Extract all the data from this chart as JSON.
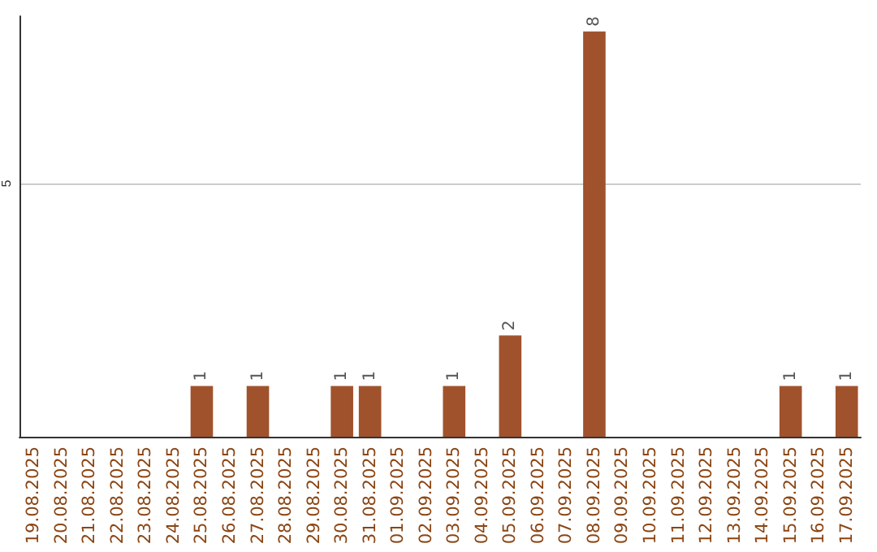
{
  "chart_data": {
    "type": "bar",
    "categories": [
      "19.08.2025",
      "20.08.2025",
      "21.08.2025",
      "22.08.2025",
      "23.08.2025",
      "24.08.2025",
      "25.08.2025",
      "26.08.2025",
      "27.08.2025",
      "28.08.2025",
      "29.08.2025",
      "30.08.2025",
      "31.08.2025",
      "01.09.2025",
      "02.09.2025",
      "03.09.2025",
      "04.09.2025",
      "05.09.2025",
      "06.09.2025",
      "07.09.2025",
      "08.09.2025",
      "09.09.2025",
      "10.09.2025",
      "11.09.2025",
      "12.09.2025",
      "13.09.2025",
      "14.09.2025",
      "15.09.2025",
      "16.09.2025",
      "17.09.2025"
    ],
    "values": [
      0,
      0,
      0,
      0,
      0,
      0,
      1,
      0,
      1,
      0,
      0,
      1,
      1,
      0,
      0,
      1,
      0,
      2,
      0,
      0,
      8,
      0,
      0,
      0,
      0,
      0,
      0,
      1,
      0,
      1
    ],
    "value_labels": [
      null,
      null,
      null,
      null,
      null,
      null,
      "1",
      null,
      "1",
      null,
      null,
      "1",
      "1",
      null,
      null,
      "1",
      null,
      "2",
      null,
      null,
      "8",
      null,
      null,
      null,
      null,
      null,
      null,
      "1",
      null,
      "1"
    ],
    "color": "#a0522d",
    "ylim": [
      0,
      8.3
    ],
    "yticks": [
      5
    ],
    "grid": "y"
  }
}
